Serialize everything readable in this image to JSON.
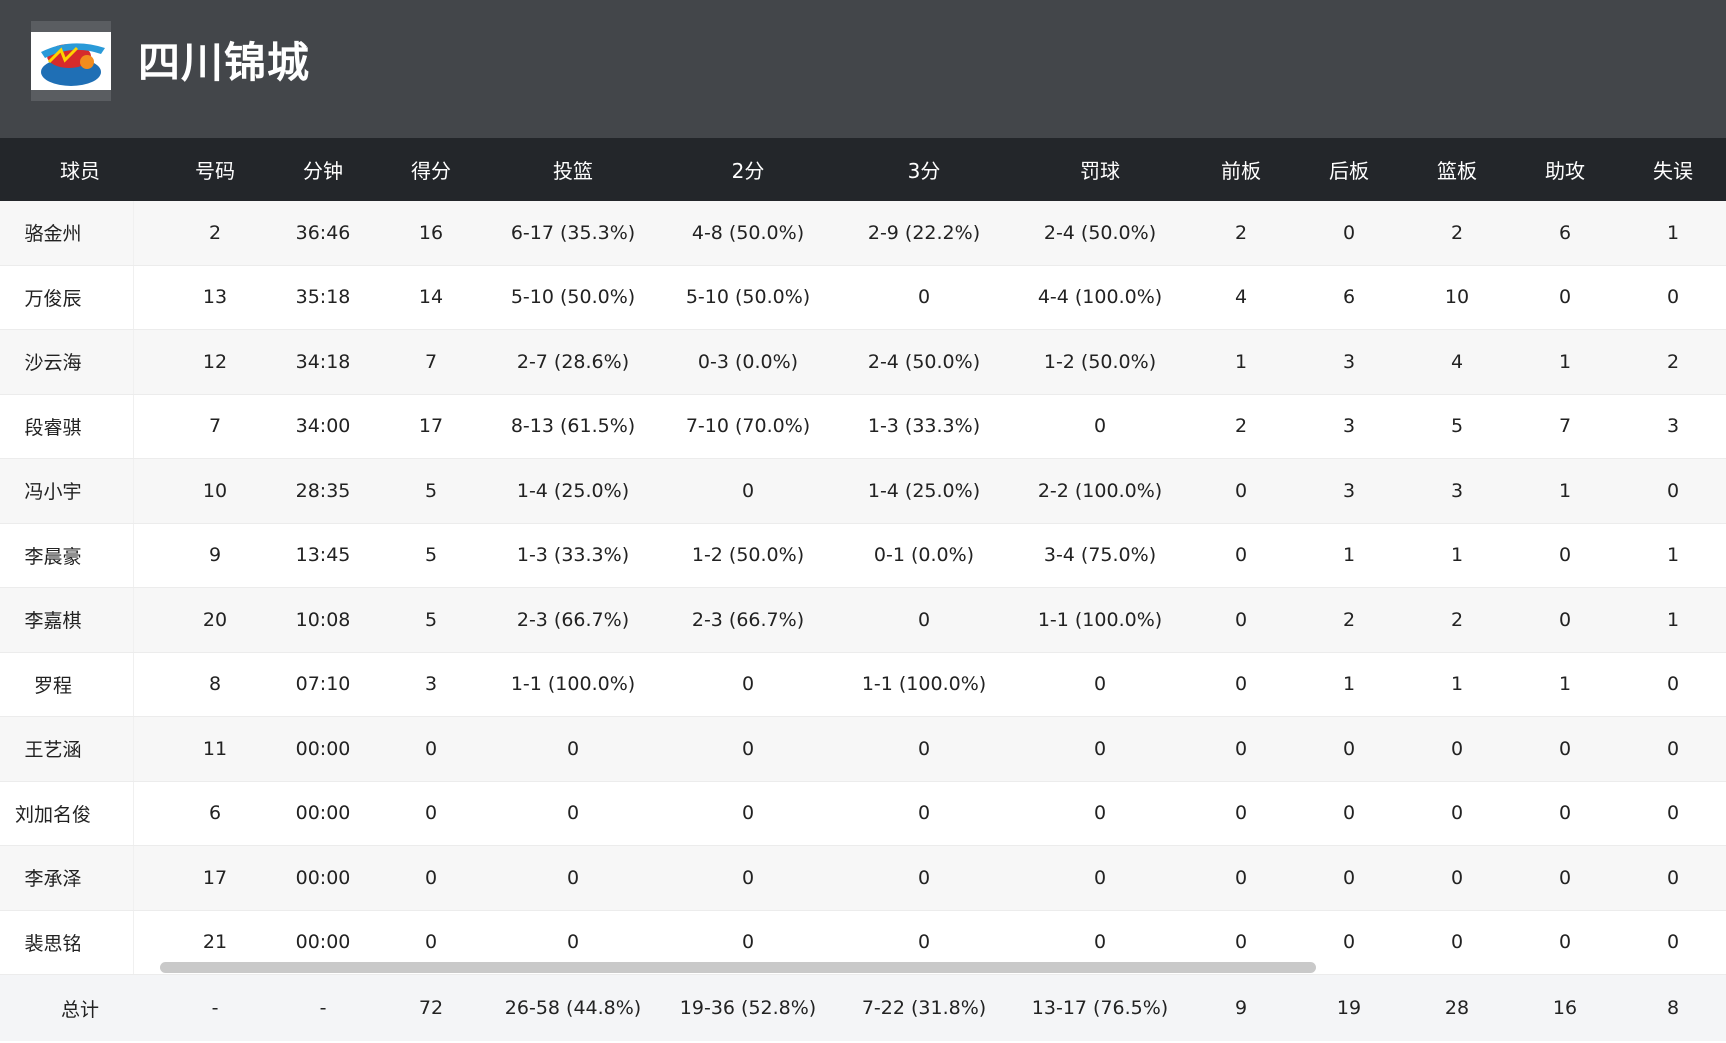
{
  "team": {
    "name": "四川锦城",
    "logo_icon": "team-logo-icon"
  },
  "table": {
    "headers": [
      "球员",
      "号码",
      "分钟",
      "得分",
      "投篮",
      "2分",
      "3分",
      "罚球",
      "前板",
      "后板",
      "篮板",
      "助攻",
      "失误"
    ],
    "rows": [
      [
        "骆金州",
        "2",
        "36:46",
        "16",
        "6-17 (35.3%)",
        "4-8 (50.0%)",
        "2-9 (22.2%)",
        "2-4 (50.0%)",
        "2",
        "0",
        "2",
        "6",
        "1"
      ],
      [
        "万俊辰",
        "13",
        "35:18",
        "14",
        "5-10 (50.0%)",
        "5-10 (50.0%)",
        "0",
        "4-4 (100.0%)",
        "4",
        "6",
        "10",
        "0",
        "0"
      ],
      [
        "沙云海",
        "12",
        "34:18",
        "7",
        "2-7 (28.6%)",
        "0-3 (0.0%)",
        "2-4 (50.0%)",
        "1-2 (50.0%)",
        "1",
        "3",
        "4",
        "1",
        "2"
      ],
      [
        "段睿骐",
        "7",
        "34:00",
        "17",
        "8-13 (61.5%)",
        "7-10 (70.0%)",
        "1-3 (33.3%)",
        "0",
        "2",
        "3",
        "5",
        "7",
        "3"
      ],
      [
        "冯小宇",
        "10",
        "28:35",
        "5",
        "1-4 (25.0%)",
        "0",
        "1-4 (25.0%)",
        "2-2 (100.0%)",
        "0",
        "3",
        "3",
        "1",
        "0"
      ],
      [
        "李晨豪",
        "9",
        "13:45",
        "5",
        "1-3 (33.3%)",
        "1-2 (50.0%)",
        "0-1 (0.0%)",
        "3-4 (75.0%)",
        "0",
        "1",
        "1",
        "0",
        "1"
      ],
      [
        "李嘉棋",
        "20",
        "10:08",
        "5",
        "2-3 (66.7%)",
        "2-3 (66.7%)",
        "0",
        "1-1 (100.0%)",
        "0",
        "2",
        "2",
        "0",
        "1"
      ],
      [
        "罗程",
        "8",
        "07:10",
        "3",
        "1-1 (100.0%)",
        "0",
        "1-1 (100.0%)",
        "0",
        "0",
        "1",
        "1",
        "1",
        "0"
      ],
      [
        "王艺涵",
        "11",
        "00:00",
        "0",
        "0",
        "0",
        "0",
        "0",
        "0",
        "0",
        "0",
        "0",
        "0"
      ],
      [
        "刘加名俊",
        "6",
        "00:00",
        "0",
        "0",
        "0",
        "0",
        "0",
        "0",
        "0",
        "0",
        "0",
        "0"
      ],
      [
        "李承泽",
        "17",
        "00:00",
        "0",
        "0",
        "0",
        "0",
        "0",
        "0",
        "0",
        "0",
        "0",
        "0"
      ],
      [
        "裴思铭",
        "21",
        "00:00",
        "0",
        "0",
        "0",
        "0",
        "0",
        "0",
        "0",
        "0",
        "0",
        "0"
      ]
    ],
    "total": [
      "总计",
      "-",
      "-",
      "72",
      "26-58 (44.8%)",
      "19-36 (52.8%)",
      "7-22 (31.8%)",
      "13-17 (76.5%)",
      "9",
      "19",
      "28",
      "16",
      "8"
    ]
  },
  "colors": {
    "header_bg": "#43464a",
    "table_head_bg": "#23262a",
    "row_alt_bg": "#f7f7f7"
  }
}
